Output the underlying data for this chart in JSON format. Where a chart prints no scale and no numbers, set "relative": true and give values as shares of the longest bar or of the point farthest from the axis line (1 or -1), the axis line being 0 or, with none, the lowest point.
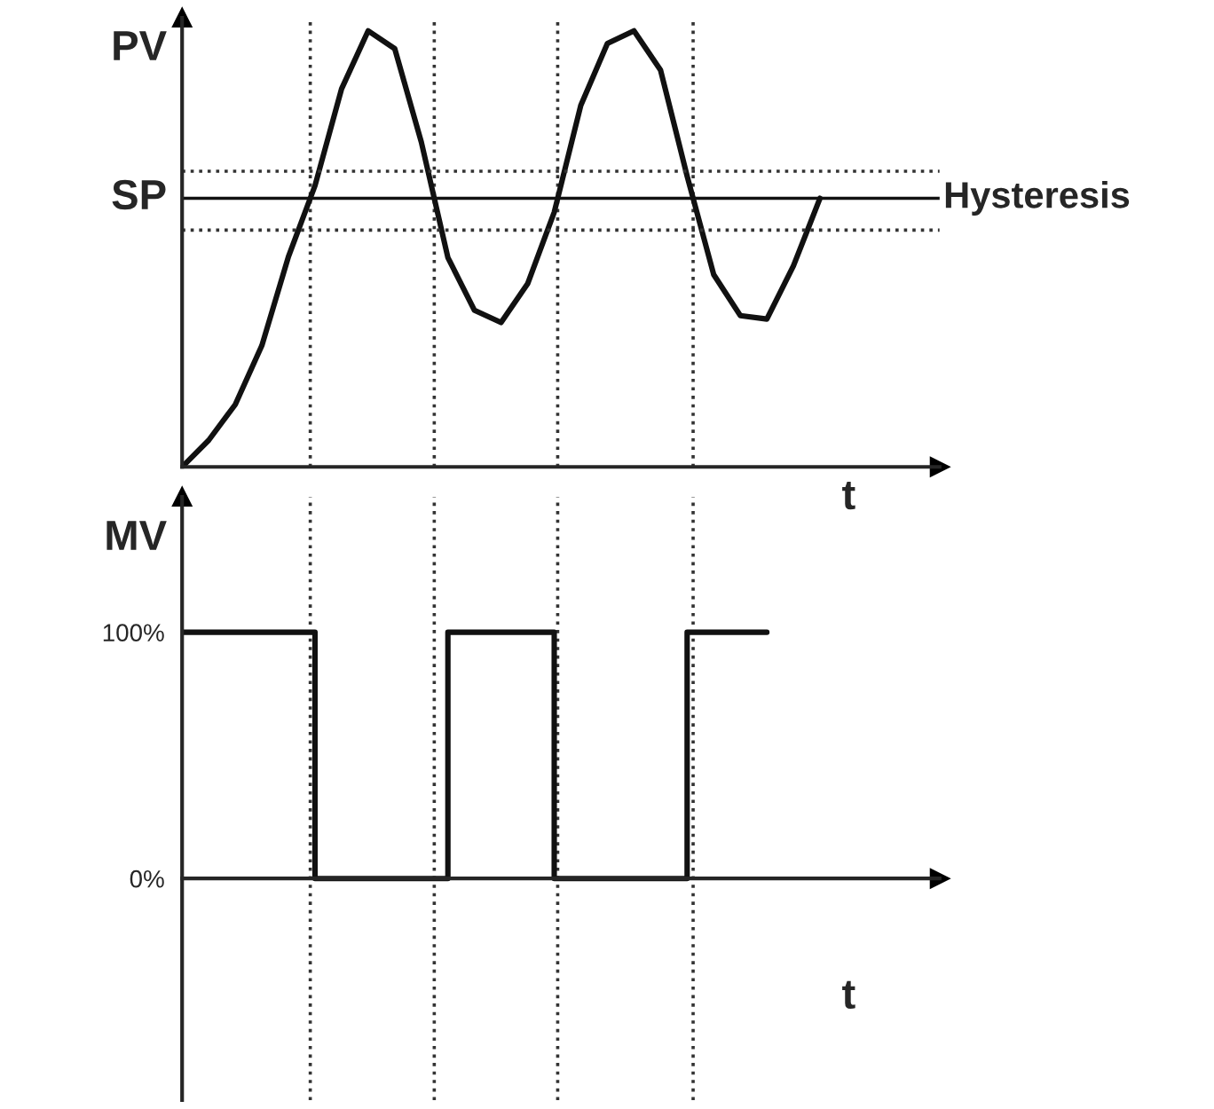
{
  "chart_data": [
    {
      "type": "line",
      "relative": true,
      "ylabel": "PV",
      "xlabel": "t",
      "grid": false,
      "legend": false,
      "marker": "none",
      "line_style": "solid",
      "categories": [
        null,
        null,
        null,
        null,
        null,
        null,
        null,
        null,
        null,
        null,
        null,
        null,
        null,
        null,
        null,
        null,
        null,
        null,
        null,
        null,
        null,
        null,
        null,
        null,
        null
      ],
      "series": [
        {
          "color": "#111111",
          "values": [
            0,
            0.061,
            0.143,
            0.278,
            0.482,
            0.645,
            0.867,
            1,
            0.959,
            0.745,
            0.48,
            0.359,
            0.331,
            0.42,
            0.584,
            0.829,
            0.971,
            1,
            0.91,
            0.667,
            0.441,
            0.347,
            0.339,
            0.461,
            0.616
          ]
        }
      ],
      "ref_lines": [
        {
          "axis": "y",
          "value": 0.616,
          "label": "SP",
          "color": "#111111",
          "line_style": "solid"
        },
        {
          "axis": "y",
          "value": 0.678,
          "color": "#333333",
          "line_style": "dotted"
        },
        {
          "axis": "y",
          "value": 0.543,
          "color": "#333333",
          "line_style": "dotted"
        }
      ],
      "annotations": [
        "Hysteresis"
      ]
    },
    {
      "type": "step",
      "ylabel": "MV",
      "xlabel": "t",
      "grid": false,
      "legend": false,
      "ylim": [
        -90,
        155
      ],
      "yticks": [
        {
          "value": 0,
          "label": "0%"
        },
        {
          "value": 100,
          "label": "100%"
        }
      ],
      "categories": [
        null,
        null,
        null,
        null,
        null,
        null,
        null,
        null,
        null,
        null,
        null,
        null,
        null,
        null,
        null,
        null,
        null,
        null,
        null,
        null,
        null,
        null,
        null,
        null,
        null
      ],
      "series": [
        {
          "color": "#111111",
          "values": [
            100,
            100,
            100,
            100,
            100,
            0,
            0,
            0,
            0,
            0,
            100,
            100,
            100,
            100,
            0,
            0,
            0,
            0,
            0,
            100,
            100,
            100,
            100,
            null,
            null
          ]
        }
      ]
    }
  ]
}
